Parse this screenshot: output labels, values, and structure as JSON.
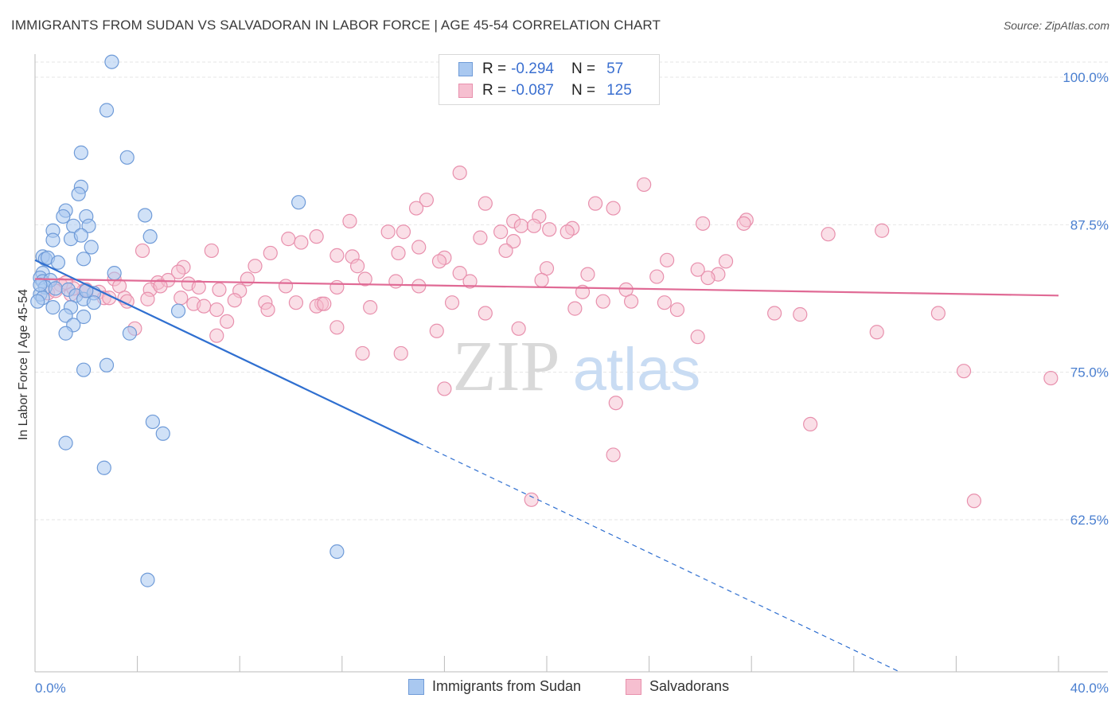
{
  "header": {
    "title": "IMMIGRANTS FROM SUDAN VS SALVADORAN IN LABOR FORCE | AGE 45-54 CORRELATION CHART",
    "source": "Source: ZipAtlas.com"
  },
  "watermark": {
    "part1": "ZIP",
    "part2": "atlas"
  },
  "legend": {
    "rows": [
      {
        "r_label": "R =",
        "r_value": "-0.294",
        "n_label": "N =",
        "n_value": "57"
      },
      {
        "r_label": "R =",
        "r_value": "-0.087",
        "n_label": "N =",
        "n_value": "125"
      }
    ]
  },
  "bottom_legend": {
    "items": [
      {
        "label": "Immigrants from Sudan"
      },
      {
        "label": "Salvadorans"
      }
    ]
  },
  "colors": {
    "blue_fill": "#a9c8f0",
    "blue_stroke": "#6f9bd8",
    "blue_line": "#2f6fd0",
    "pink_fill": "#f6bfd0",
    "pink_stroke": "#e890ad",
    "pink_line": "#e06a95",
    "grid": "#e6e6e6",
    "tick_label": "#4a7fd0"
  },
  "chart_data": {
    "type": "scatter",
    "title": "IMMIGRANTS FROM SUDAN VS SALVADORAN IN LABOR FORCE | AGE 45-54 CORRELATION CHART",
    "xlabel": "",
    "ylabel": "In Labor Force | Age 45-54",
    "xlim": [
      0,
      40
    ],
    "ylim": [
      50,
      103
    ],
    "x_ticks": [
      "0.0%",
      "40.0%"
    ],
    "y_ticks": [
      {
        "value": 100,
        "label": "100.0%"
      },
      {
        "value": 87.5,
        "label": "87.5%"
      },
      {
        "value": 75,
        "label": "75.0%"
      },
      {
        "value": 62.5,
        "label": "62.5%"
      }
    ],
    "grid": true,
    "series": [
      {
        "name": "Immigrants from Sudan",
        "r": -0.294,
        "n": 57,
        "trend": {
          "x0": 0.0,
          "y0": 84.5,
          "x1_solid": 15.0,
          "y1_solid": 69.0,
          "x1": 40.0,
          "y1": 43.2
        },
        "points": [
          [
            3.0,
            101.3
          ],
          [
            2.8,
            97.2
          ],
          [
            1.8,
            93.6
          ],
          [
            3.6,
            93.2
          ],
          [
            1.8,
            90.7
          ],
          [
            1.7,
            90.1
          ],
          [
            1.2,
            88.7
          ],
          [
            1.1,
            88.2
          ],
          [
            2.0,
            88.2
          ],
          [
            4.3,
            88.3
          ],
          [
            10.3,
            89.4
          ],
          [
            1.5,
            87.4
          ],
          [
            2.1,
            87.4
          ],
          [
            0.7,
            87.0
          ],
          [
            0.7,
            86.2
          ],
          [
            1.4,
            86.3
          ],
          [
            1.8,
            86.6
          ],
          [
            4.5,
            86.5
          ],
          [
            2.2,
            85.6
          ],
          [
            0.3,
            84.8
          ],
          [
            0.4,
            84.6
          ],
          [
            0.5,
            84.7
          ],
          [
            0.9,
            84.3
          ],
          [
            1.9,
            84.6
          ],
          [
            0.3,
            83.4
          ],
          [
            3.1,
            83.4
          ],
          [
            0.2,
            83.0
          ],
          [
            0.3,
            82.7
          ],
          [
            0.6,
            82.8
          ],
          [
            0.4,
            82.2
          ],
          [
            0.8,
            82.1
          ],
          [
            1.3,
            82.0
          ],
          [
            1.6,
            81.5
          ],
          [
            0.2,
            81.6
          ],
          [
            1.9,
            81.2
          ],
          [
            0.3,
            81.3
          ],
          [
            2.3,
            81.7
          ],
          [
            2.3,
            80.9
          ],
          [
            0.7,
            80.5
          ],
          [
            1.4,
            80.5
          ],
          [
            1.2,
            79.8
          ],
          [
            5.6,
            80.2
          ],
          [
            1.9,
            79.7
          ],
          [
            1.5,
            79.0
          ],
          [
            1.2,
            78.3
          ],
          [
            3.7,
            78.3
          ],
          [
            1.9,
            75.2
          ],
          [
            2.8,
            75.6
          ],
          [
            4.6,
            70.8
          ],
          [
            5.0,
            69.8
          ],
          [
            1.2,
            69.0
          ],
          [
            2.7,
            66.9
          ],
          [
            11.8,
            59.8
          ],
          [
            4.4,
            57.4
          ],
          [
            0.1,
            81.0
          ],
          [
            0.2,
            82.4
          ],
          [
            2.0,
            81.9
          ]
        ]
      },
      {
        "name": "Salvadorans",
        "r": -0.087,
        "n": 125,
        "trend": {
          "x0": 0.0,
          "y0": 82.9,
          "x1": 40.0,
          "y1": 81.5
        },
        "points": [
          [
            16.6,
            91.9
          ],
          [
            23.8,
            90.9
          ],
          [
            15.3,
            89.6
          ],
          [
            17.6,
            89.3
          ],
          [
            21.9,
            89.3
          ],
          [
            14.9,
            88.9
          ],
          [
            22.6,
            88.9
          ],
          [
            19.7,
            88.2
          ],
          [
            27.8,
            87.9
          ],
          [
            12.3,
            87.8
          ],
          [
            18.7,
            87.8
          ],
          [
            19.0,
            87.4
          ],
          [
            19.5,
            87.4
          ],
          [
            20.1,
            87.1
          ],
          [
            21.0,
            87.2
          ],
          [
            26.1,
            87.6
          ],
          [
            27.7,
            87.6
          ],
          [
            13.8,
            86.9
          ],
          [
            14.4,
            86.9
          ],
          [
            18.2,
            86.9
          ],
          [
            20.8,
            86.9
          ],
          [
            31.0,
            86.7
          ],
          [
            33.1,
            87.0
          ],
          [
            9.9,
            86.3
          ],
          [
            11.0,
            86.5
          ],
          [
            17.4,
            86.4
          ],
          [
            18.7,
            86.1
          ],
          [
            10.4,
            86.0
          ],
          [
            15.0,
            85.6
          ],
          [
            18.4,
            85.3
          ],
          [
            4.2,
            85.3
          ],
          [
            6.9,
            85.3
          ],
          [
            9.2,
            85.1
          ],
          [
            14.2,
            85.1
          ],
          [
            11.8,
            84.9
          ],
          [
            12.4,
            84.8
          ],
          [
            16.0,
            84.7
          ],
          [
            15.8,
            84.4
          ],
          [
            8.6,
            84.0
          ],
          [
            12.6,
            84.0
          ],
          [
            5.8,
            83.9
          ],
          [
            20.0,
            83.8
          ],
          [
            5.6,
            83.5
          ],
          [
            16.6,
            83.4
          ],
          [
            21.6,
            83.3
          ],
          [
            26.7,
            83.3
          ],
          [
            24.7,
            84.5
          ],
          [
            27.0,
            84.4
          ],
          [
            3.1,
            82.9
          ],
          [
            4.8,
            82.6
          ],
          [
            5.2,
            82.8
          ],
          [
            8.3,
            82.9
          ],
          [
            12.9,
            82.9
          ],
          [
            14.1,
            82.7
          ],
          [
            17.0,
            82.7
          ],
          [
            19.8,
            82.8
          ],
          [
            24.3,
            83.1
          ],
          [
            26.3,
            83.0
          ],
          [
            25.9,
            83.7
          ],
          [
            3.3,
            82.3
          ],
          [
            4.5,
            82.0
          ],
          [
            4.9,
            82.3
          ],
          [
            6.0,
            82.5
          ],
          [
            6.4,
            82.2
          ],
          [
            8.0,
            81.9
          ],
          [
            7.2,
            82.0
          ],
          [
            9.8,
            82.3
          ],
          [
            11.8,
            82.2
          ],
          [
            15.0,
            82.3
          ],
          [
            23.1,
            82.0
          ],
          [
            21.4,
            81.8
          ],
          [
            1.4,
            81.6
          ],
          [
            1.9,
            81.9
          ],
          [
            2.5,
            81.8
          ],
          [
            3.5,
            81.3
          ],
          [
            4.4,
            81.2
          ],
          [
            5.7,
            81.3
          ],
          [
            7.8,
            81.1
          ],
          [
            10.2,
            80.9
          ],
          [
            11.2,
            80.8
          ],
          [
            11.0,
            80.6
          ],
          [
            11.3,
            80.8
          ],
          [
            13.1,
            80.5
          ],
          [
            16.3,
            80.9
          ],
          [
            17.6,
            80.0
          ],
          [
            22.2,
            81.0
          ],
          [
            23.3,
            81.0
          ],
          [
            24.6,
            80.9
          ],
          [
            25.1,
            80.3
          ],
          [
            21.1,
            80.4
          ],
          [
            6.2,
            80.8
          ],
          [
            6.6,
            80.6
          ],
          [
            7.1,
            80.3
          ],
          [
            7.5,
            79.3
          ],
          [
            9.0,
            80.9
          ],
          [
            9.1,
            80.3
          ],
          [
            28.9,
            80.0
          ],
          [
            29.9,
            79.9
          ],
          [
            35.3,
            80.0
          ],
          [
            3.9,
            78.7
          ],
          [
            7.1,
            78.1
          ],
          [
            11.8,
            78.8
          ],
          [
            15.7,
            78.5
          ],
          [
            18.9,
            78.7
          ],
          [
            25.9,
            78.0
          ],
          [
            32.9,
            78.4
          ],
          [
            12.8,
            76.6
          ],
          [
            14.3,
            76.6
          ],
          [
            16.0,
            73.6
          ],
          [
            22.7,
            72.4
          ],
          [
            30.3,
            70.6
          ],
          [
            36.3,
            75.1
          ],
          [
            39.7,
            74.5
          ],
          [
            22.6,
            68.0
          ],
          [
            19.4,
            64.2
          ],
          [
            36.7,
            64.1
          ],
          [
            1.0,
            82.4
          ],
          [
            1.5,
            82.1
          ],
          [
            2.7,
            81.3
          ],
          [
            0.5,
            81.7
          ],
          [
            1.2,
            82.6
          ],
          [
            2.0,
            82.0
          ],
          [
            3.6,
            81.0
          ],
          [
            2.9,
            81.3
          ],
          [
            0.8,
            81.9
          ]
        ]
      }
    ]
  }
}
